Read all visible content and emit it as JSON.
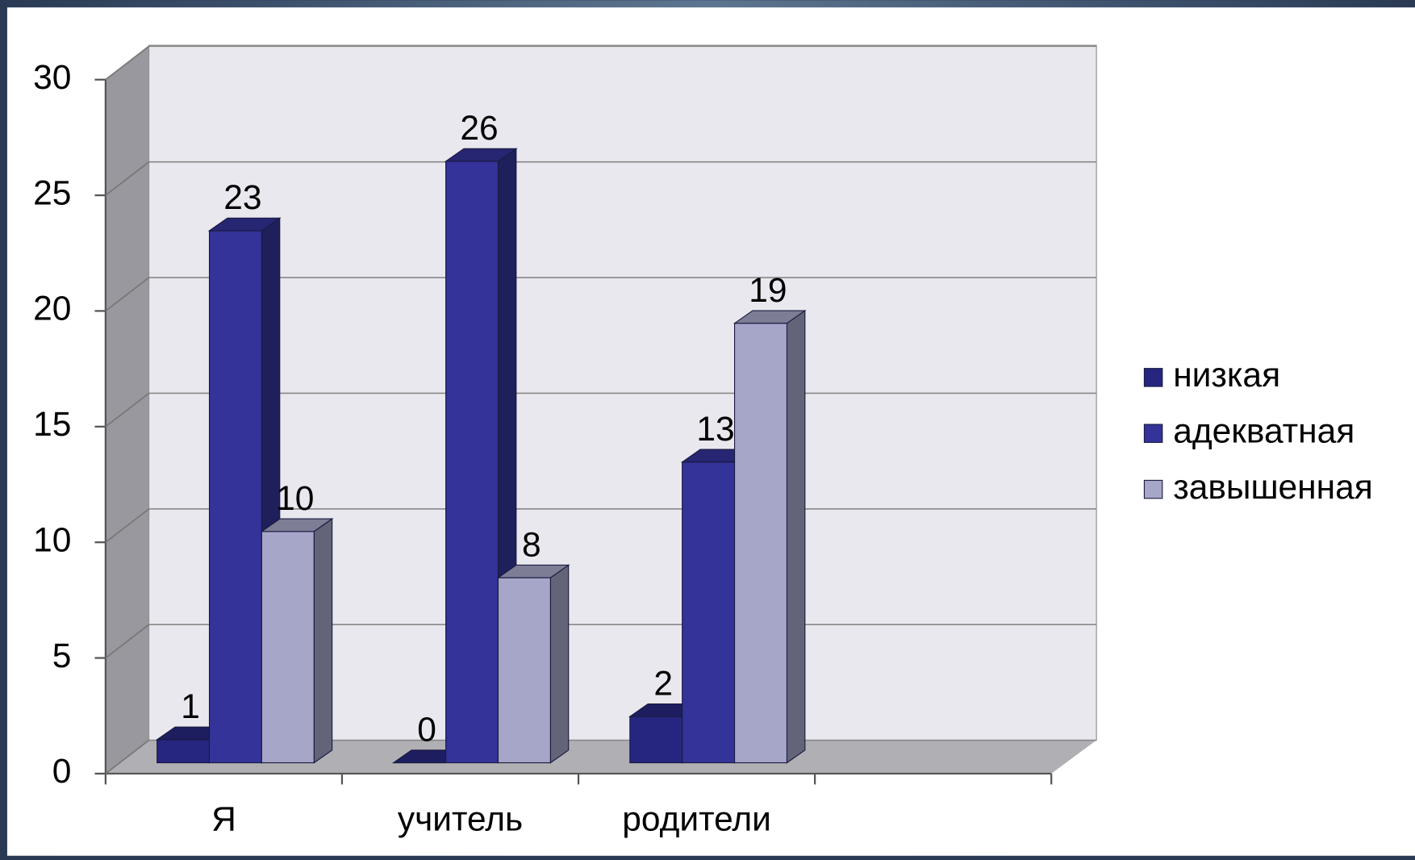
{
  "chart_data": {
    "type": "bar3d",
    "categories": [
      "Я",
      "учитель",
      "родители",
      null
    ],
    "series": [
      {
        "name": "низкая",
        "color": "#262680",
        "values": [
          1,
          0,
          2,
          null
        ]
      },
      {
        "name": "адекватная",
        "color": "#333399",
        "values": [
          23,
          26,
          13,
          null
        ]
      },
      {
        "name": "завышенная",
        "color": "#a6a6c8",
        "values": [
          10,
          8,
          19,
          null
        ]
      }
    ],
    "ylim": [
      0,
      30
    ],
    "yticks": [
      0,
      5,
      10,
      15,
      20,
      25,
      30
    ],
    "grid": true,
    "legend": "right"
  }
}
